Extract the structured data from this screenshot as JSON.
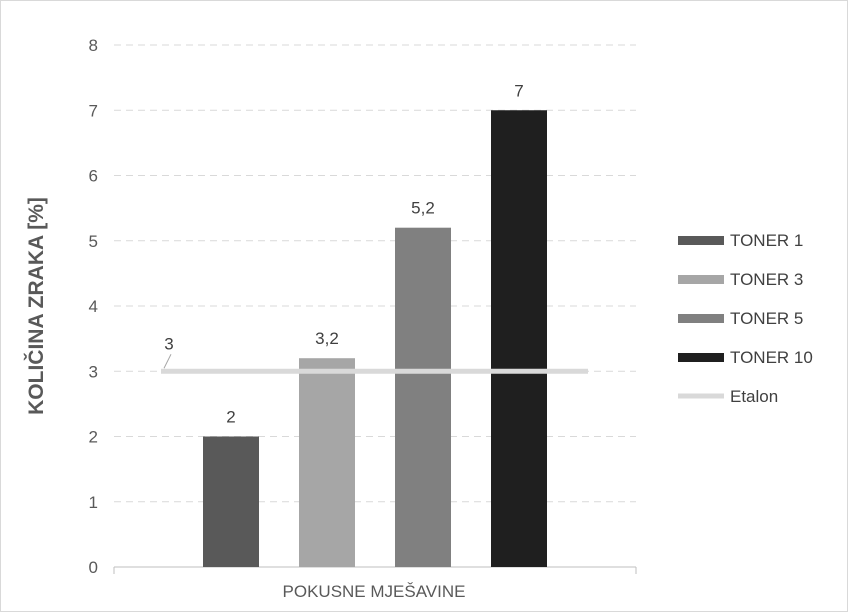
{
  "chart_data": {
    "type": "bar",
    "xlabel": "POKUSNE MJEŠAVINE",
    "ylabel": "KOLIČINA ZRAKA [%]",
    "ylim": [
      0,
      8
    ],
    "yticks": [
      "0",
      "1",
      "2",
      "3",
      "4",
      "5",
      "6",
      "7",
      "8"
    ],
    "grid": true,
    "legend_position": "right",
    "series": [
      {
        "name": "TONER 1",
        "values": [
          2
        ],
        "label": "2",
        "color": "#595959"
      },
      {
        "name": "TONER 3",
        "values": [
          3.2
        ],
        "label": "3,2",
        "color": "#a6a6a6"
      },
      {
        "name": "TONER 5",
        "values": [
          5.2
        ],
        "label": "5,2",
        "color": "#808080"
      },
      {
        "name": "TONER 10",
        "values": [
          7
        ],
        "label": "7",
        "color": "#1f1f1f"
      }
    ],
    "reference_line": {
      "name": "Etalon",
      "value": 3,
      "label": "3",
      "color": "#d9d9d9"
    }
  }
}
